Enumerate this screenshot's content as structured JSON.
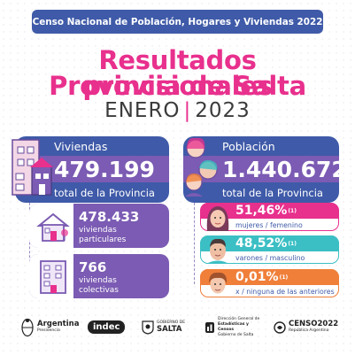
{
  "header": {
    "banner": "Censo Nacional de Población, Hogares y Viviendas 2022",
    "title_line1": "Resultados provisionales",
    "title_line2": "Provincia de Salta",
    "date_month": "ENERO",
    "date_sep": "|",
    "date_year": "2023"
  },
  "viviendas": {
    "label": "Viviendas",
    "value": "479.199",
    "sub": "total de la Provincia",
    "particulares": {
      "value": "478.433",
      "desc_line1": "viviendas",
      "desc_line2": "particulares"
    },
    "colectivas": {
      "value": "766",
      "desc_line1": "viviendas",
      "desc_line2": "colectivas"
    }
  },
  "poblacion": {
    "label": "Población",
    "value": "1.440.672",
    "sub": "total de la Provincia",
    "mujeres": {
      "value": "51,46%",
      "note": "(1)",
      "desc": "mujeres / femenino"
    },
    "varones": {
      "value": "48,52%",
      "note": "(1)",
      "desc": "varones / masculino"
    },
    "otros": {
      "value": "0,01%",
      "note": "(1)",
      "desc": "x / ninguna de las anteriores"
    }
  },
  "footer": {
    "argentina": "Argentina",
    "argentina_sub": "Presidencia",
    "indec": "indec",
    "salta_top": "GOBIERNO DE",
    "salta": "SALTA",
    "dgeyc_line1": "Dirección General de",
    "dgeyc_line2": "Estadísticas y",
    "dgeyc_line3": "Censos",
    "dgeyc_line4": "Gobierno de Salta",
    "censo": "CENSO2022",
    "censo_sub": "República Argentina"
  },
  "colors": {
    "blue": "#3f5aa8",
    "purple": "#7b5bb3",
    "pink": "#e8308d",
    "teal": "#3bbfc4",
    "orange": "#f07f3a"
  }
}
